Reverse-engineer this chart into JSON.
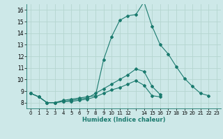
{
  "xlabel": "Humidex (Indice chaleur)",
  "ylabel": "",
  "background_color": "#cde8e8",
  "grid_color": "#b5d5d0",
  "line_color": "#1a7a6e",
  "xlim": [
    -0.5,
    23.5
  ],
  "ylim": [
    7.5,
    16.5
  ],
  "xticks": [
    0,
    1,
    2,
    3,
    4,
    5,
    6,
    7,
    8,
    9,
    10,
    11,
    12,
    14,
    15,
    16,
    17,
    18,
    19,
    20,
    21,
    22,
    23
  ],
  "yticks": [
    8,
    9,
    10,
    11,
    12,
    13,
    14,
    15,
    16
  ],
  "series": [
    [
      8.8,
      8.5,
      8.0,
      8.0,
      8.2,
      8.3,
      8.4,
      8.5,
      8.6,
      11.7,
      13.7,
      15.1,
      15.5,
      15.6,
      16.7,
      14.6,
      13.0,
      12.2,
      11.1,
      10.1,
      9.4,
      8.8,
      8.6
    ],
    [
      8.8,
      8.5,
      8.0,
      8.0,
      8.1,
      8.2,
      8.3,
      8.4,
      8.8,
      9.2,
      9.6,
      10.0,
      10.4,
      10.9,
      10.7,
      9.4,
      8.7
    ],
    [
      8.8,
      8.5,
      8.0,
      8.0,
      8.1,
      8.1,
      8.2,
      8.3,
      8.5,
      8.8,
      9.1,
      9.3,
      9.6,
      9.9,
      9.5,
      8.6,
      8.5
    ]
  ],
  "series_x": [
    [
      0,
      1,
      2,
      3,
      4,
      5,
      6,
      7,
      8,
      9,
      10,
      11,
      12,
      13,
      14,
      15,
      16,
      17,
      18,
      19,
      20,
      21,
      22
    ],
    [
      0,
      1,
      2,
      3,
      4,
      5,
      6,
      7,
      8,
      9,
      10,
      11,
      12,
      13,
      14,
      15,
      16
    ],
    [
      0,
      1,
      2,
      3,
      4,
      5,
      6,
      7,
      8,
      9,
      10,
      11,
      12,
      13,
      14,
      15,
      16
    ]
  ]
}
